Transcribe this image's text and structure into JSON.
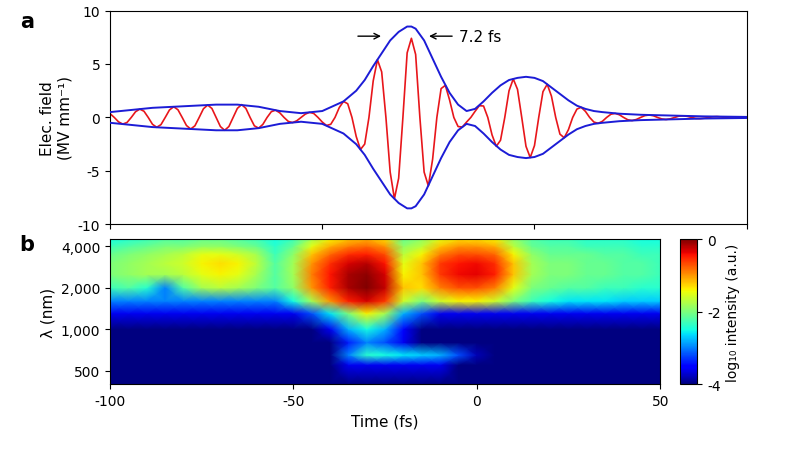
{
  "chart_data": [
    {
      "type": "line",
      "title": "a",
      "y_label": "Elec. field\n(MV mm⁻¹)",
      "tick_labels": "y",
      "xlim": [
        -100,
        50
      ],
      "xticks": [
        -100,
        -50,
        0,
        50
      ],
      "ylim": [
        -10,
        10
      ],
      "yticks": [
        -10,
        -5,
        0,
        5,
        10
      ],
      "x": [
        -100,
        -99,
        -98,
        -97,
        -96,
        -95,
        -94,
        -93,
        -92,
        -91,
        -90,
        -89,
        -88,
        -87,
        -86,
        -85,
        -84,
        -83,
        -82,
        -81,
        -80,
        -79,
        -78,
        -77,
        -76,
        -75,
        -74,
        -73,
        -72,
        -71,
        -70,
        -69,
        -68,
        -67,
        -66,
        -65,
        -64,
        -63,
        -62,
        -61,
        -60,
        -59,
        -58,
        -57,
        -56,
        -55,
        -54,
        -53,
        -52,
        -51,
        -50,
        -49,
        -48,
        -47,
        -46,
        -45,
        -44,
        -43,
        -42,
        -41,
        -40,
        -39,
        -38,
        -37,
        -36,
        -35,
        -34,
        -33,
        -32,
        -31,
        -30,
        -29,
        -28,
        -27,
        -26,
        -25,
        -24,
        -23,
        -22,
        -21,
        -20,
        -19,
        -18,
        -17,
        -16,
        -15,
        -14,
        -13,
        -12,
        -11,
        -10,
        -9,
        -8,
        -7,
        -6,
        -5,
        -4,
        -3,
        -2,
        -1,
        0,
        1,
        2,
        3,
        4,
        5,
        6,
        7,
        8,
        9,
        10,
        11,
        12,
        13,
        14,
        15,
        16,
        17,
        18,
        19,
        20,
        21,
        22,
        23,
        24,
        25,
        26,
        27,
        28,
        29,
        30,
        31,
        32,
        33,
        34,
        35,
        36,
        37,
        38,
        39,
        40,
        41,
        42,
        43,
        44,
        45,
        46,
        47,
        48,
        49,
        50
      ],
      "series": [
        {
          "color": "#e8161b",
          "values": [
            0.36,
            0,
            -0.41,
            -0.62,
            -0.47,
            0,
            0.53,
            0.78,
            0.58,
            0,
            -0.64,
            -0.92,
            -0.67,
            0,
            0.7,
            1.0,
            0.72,
            0,
            -0.75,
            -1.08,
            -0.78,
            0,
            0.81,
            1.16,
            0.84,
            0,
            -0.85,
            -1.2,
            -0.85,
            0,
            0.85,
            1.2,
            0.85,
            0,
            -0.78,
            -1.0,
            -0.65,
            0,
            0.54,
            0.68,
            0.43,
            0,
            -0.37,
            -0.48,
            -0.31,
            0,
            0.31,
            0.48,
            0.37,
            0,
            -0.43,
            -0.75,
            -0.64,
            0,
            0.92,
            1.5,
            1.28,
            0,
            -1.78,
            -3.0,
            -2.49,
            0,
            3.41,
            5.4,
            4.26,
            0,
            -5.11,
            -7.6,
            -5.68,
            0,
            6.04,
            7.4,
            5.89,
            0,
            -5.11,
            -6.4,
            -3.91,
            0,
            2.7,
            3.0,
            1.63,
            0,
            -0.85,
            -0.9,
            -0.43,
            0,
            0.57,
            1.1,
            1.07,
            0,
            -1.63,
            -2.7,
            -2.13,
            0,
            2.49,
            3.6,
            2.63,
            0,
            -2.7,
            -3.75,
            -2.63,
            0,
            2.41,
            3.1,
            1.99,
            0,
            -1.56,
            -1.9,
            -1.14,
            0,
            0.78,
            0.95,
            0.57,
            0,
            -0.43,
            -0.55,
            -0.36,
            0,
            0.3,
            0.38,
            0.25,
            0,
            -0.22,
            -0.29,
            -0.19,
            0,
            0.17,
            0.23,
            0.16,
            0,
            -0.14,
            -0.19,
            -0.13,
            0,
            0.12,
            0.15,
            0.1,
            0,
            -0.09,
            -0.11,
            -0.07,
            0,
            0.06,
            0.08,
            0.05,
            0,
            -0.05,
            -0.06,
            -0.04,
            0,
            0.04
          ]
        },
        {
          "color": "#1c1cd6",
          "x": [
            -100,
            -95,
            -90,
            -85,
            -80,
            -75,
            -70,
            -65,
            -60,
            -55,
            -50,
            -45,
            -42,
            -40,
            -38,
            -36,
            -34,
            -32,
            -30,
            -29,
            -28,
            -26,
            -24,
            -22,
            -20,
            -18,
            -16,
            -14,
            -12,
            -10,
            -8,
            -6,
            -4,
            -2,
            0,
            2,
            4,
            6,
            8,
            10,
            12,
            14,
            16,
            20,
            25,
            30,
            40,
            50
          ],
          "values": [
            0.5,
            0.7,
            0.9,
            1.0,
            1.1,
            1.2,
            1.2,
            1.0,
            0.6,
            0.4,
            0.6,
            1.5,
            2.5,
            3.5,
            4.8,
            6.0,
            7.2,
            8.0,
            8.5,
            8.5,
            8.3,
            7.2,
            5.5,
            3.8,
            2.3,
            1.2,
            0.6,
            0.8,
            1.5,
            2.3,
            3.0,
            3.5,
            3.7,
            3.8,
            3.7,
            3.4,
            2.8,
            2.2,
            1.6,
            1.1,
            0.8,
            0.6,
            0.5,
            0.35,
            0.25,
            0.2,
            0.1,
            0.05
          ]
        },
        {
          "color": "#1c1cd6",
          "x": [
            -100,
            -95,
            -90,
            -85,
            -80,
            -75,
            -70,
            -65,
            -60,
            -55,
            -50,
            -45,
            -42,
            -40,
            -38,
            -36,
            -34,
            -32,
            -30,
            -29,
            -28,
            -26,
            -24,
            -22,
            -20,
            -18,
            -16,
            -14,
            -12,
            -10,
            -8,
            -6,
            -4,
            -2,
            0,
            2,
            4,
            6,
            8,
            10,
            12,
            14,
            16,
            20,
            25,
            30,
            40,
            50
          ],
          "values": [
            -0.5,
            -0.7,
            -0.9,
            -1.0,
            -1.1,
            -1.2,
            -1.2,
            -1.0,
            -0.6,
            -0.4,
            -0.6,
            -1.5,
            -2.5,
            -3.5,
            -4.8,
            -6.0,
            -7.2,
            -8.0,
            -8.5,
            -8.5,
            -8.3,
            -7.2,
            -5.5,
            -3.8,
            -2.3,
            -1.2,
            -0.6,
            -0.8,
            -1.5,
            -2.3,
            -3.0,
            -3.5,
            -3.7,
            -3.8,
            -3.7,
            -3.4,
            -2.8,
            -2.2,
            -1.6,
            -1.1,
            -0.8,
            -0.6,
            -0.5,
            -0.35,
            -0.25,
            -0.2,
            -0.1,
            -0.05
          ]
        }
      ],
      "annotations": [
        {
          "text": "7.2 fs",
          "x": [
            -35.5,
            -25.5
          ],
          "y": 7.6
        }
      ]
    },
    {
      "type": "heatmap",
      "title": "b",
      "x_label": "Time (fs)",
      "y_label": "λ (nm)",
      "log": "y",
      "xlim": [
        -100,
        50
      ],
      "xticks": [
        -100,
        -50,
        0,
        50
      ],
      "ylim": [
        400,
        4500
      ],
      "yticks": [
        500,
        {
          "value": 1000,
          "label": "1,000"
        },
        {
          "value": 2000,
          "label": "2,000"
        },
        {
          "value": 4000,
          "label": "4,000"
        }
      ],
      "x": [
        -100,
        -95,
        -90,
        -85,
        -80,
        -75,
        -70,
        -65,
        -60,
        -55,
        -50,
        -45,
        -40,
        -35,
        -30,
        -25,
        -20,
        -15,
        -10,
        -5,
        0,
        5,
        10,
        15,
        20,
        25,
        30,
        35,
        40,
        45,
        50
      ],
      "y": [
        400,
        550,
        650,
        800,
        1000,
        1300,
        1600,
        2000,
        2500,
        3000,
        3500,
        4000,
        4500
      ],
      "cells": [
        [
          -4,
          -4,
          -4,
          -4,
          -4,
          -4,
          -4,
          -4,
          -4,
          -4,
          -4,
          -4,
          -4,
          -4,
          -4,
          -4,
          -4,
          -4,
          -4,
          -4,
          -4,
          -4,
          -4,
          -4,
          -4,
          -4,
          -4,
          -4,
          -4,
          -4,
          -4
        ],
        [
          -4,
          -4,
          -4,
          -4,
          -4,
          -4,
          -4,
          -4,
          -4,
          -4,
          -4,
          -4,
          -4,
          -3.6,
          -3.6,
          -3.6,
          -3.6,
          -3.6,
          -3.6,
          -4,
          -4,
          -4,
          -4,
          -4,
          -4,
          -4,
          -4,
          -4,
          -4,
          -4,
          -4
        ],
        [
          -4,
          -4,
          -4,
          -4,
          -4,
          -4,
          -4,
          -4,
          -4,
          -4,
          -4,
          -4,
          -4,
          -3.0,
          -2.4,
          -2.5,
          -2.6,
          -2.7,
          -2.8,
          -3.2,
          -3.8,
          -4,
          -4,
          -4,
          -4,
          -4,
          -4,
          -4,
          -4,
          -4,
          -4
        ],
        [
          -4,
          -4,
          -4,
          -4,
          -4,
          -4,
          -4,
          -4,
          -4,
          -4,
          -4,
          -4,
          -4,
          -3.4,
          -3.0,
          -3.2,
          -3.6,
          -4,
          -4,
          -4,
          -4,
          -4,
          -4,
          -4,
          -4,
          -4,
          -4,
          -4,
          -4,
          -4,
          -4
        ],
        [
          -4,
          -4,
          -4,
          -4,
          -4,
          -4,
          -4,
          -4,
          -4,
          -4,
          -4,
          -4,
          -3.6,
          -2.8,
          -2.5,
          -2.8,
          -3.5,
          -4,
          -4,
          -4,
          -4,
          -4,
          -4,
          -4,
          -4,
          -4,
          -4,
          -4,
          -4,
          -4,
          -4
        ],
        [
          -3.6,
          -3.6,
          -3.6,
          -3.6,
          -3.6,
          -3.6,
          -3.6,
          -3.6,
          -3.6,
          -3.6,
          -3.6,
          -3.2,
          -2.6,
          -2.0,
          -1.4,
          -1.8,
          -2.8,
          -3.2,
          -3.6,
          -3.6,
          -3.6,
          -3.6,
          -3.6,
          -3.6,
          -3.6,
          -3.6,
          -3.6,
          -3.6,
          -3.6,
          -3.6,
          -3.6
        ],
        [
          -3.0,
          -3.0,
          -3.0,
          -3.0,
          -3.0,
          -3.0,
          -3.0,
          -3.0,
          -3.0,
          -3.0,
          -2.5,
          -1.8,
          -1.0,
          -0.5,
          -0.3,
          -0.6,
          -1.6,
          -2.0,
          -1.6,
          -1.4,
          -1.4,
          -1.6,
          -2.0,
          -2.3,
          -2.5,
          -2.6,
          -2.6,
          -2.6,
          -2.7,
          -2.7,
          -2.7
        ],
        [
          -2.3,
          -2.2,
          -2.4,
          -3.0,
          -2.2,
          -1.8,
          -1.7,
          -1.8,
          -2.0,
          -2.2,
          -1.9,
          -1.0,
          -0.5,
          -0.15,
          0,
          -0.25,
          -1.2,
          -1.3,
          -0.9,
          -0.7,
          -0.7,
          -0.9,
          -1.5,
          -2.0,
          -2.1,
          -2.2,
          -2.2,
          -2.3,
          -2.3,
          -2.4,
          -2.4
        ],
        [
          -2.0,
          -1.9,
          -1.8,
          -1.8,
          -1.7,
          -1.5,
          -1.4,
          -1.5,
          -1.8,
          -2.2,
          -1.8,
          -0.9,
          -0.45,
          -0.15,
          -0.05,
          -0.3,
          -1.4,
          -1.2,
          -0.6,
          -0.4,
          -0.35,
          -0.5,
          -1.2,
          -1.8,
          -2.0,
          -2.0,
          -2.1,
          -2.1,
          -2.2,
          -2.2,
          -2.3
        ],
        [
          -2.0,
          -1.9,
          -1.8,
          -1.7,
          -1.6,
          -1.4,
          -1.3,
          -1.4,
          -1.7,
          -2.2,
          -1.8,
          -1.0,
          -0.55,
          -0.3,
          -0.2,
          -0.45,
          -1.5,
          -1.2,
          -0.6,
          -0.45,
          -0.4,
          -0.55,
          -1.2,
          -1.8,
          -2.0,
          -2.0,
          -2.1,
          -2.1,
          -2.2,
          -2.2,
          -2.3
        ],
        [
          -2.1,
          -2.0,
          -1.9,
          -1.8,
          -1.7,
          -1.5,
          -1.5,
          -1.6,
          -1.8,
          -2.3,
          -1.9,
          -1.2,
          -0.8,
          -0.55,
          -0.5,
          -0.7,
          -1.7,
          -1.4,
          -0.9,
          -0.7,
          -0.7,
          -0.8,
          -1.4,
          -1.9,
          -2.1,
          -2.1,
          -2.1,
          -2.2,
          -2.2,
          -2.3,
          -2.3
        ],
        [
          -2.3,
          -2.2,
          -2.1,
          -2.0,
          -2.0,
          -1.9,
          -1.9,
          -2.0,
          -2.1,
          -2.4,
          -2.1,
          -1.5,
          -1.1,
          -0.9,
          -0.8,
          -1.0,
          -1.9,
          -1.7,
          -1.2,
          -1.0,
          -1.0,
          -1.1,
          -1.7,
          -2.1,
          -2.2,
          -2.2,
          -2.3,
          -2.3,
          -2.3,
          -2.4,
          -2.4
        ],
        [
          -2.5,
          -2.4,
          -2.3,
          -2.2,
          -2.2,
          -2.1,
          -2.1,
          -2.2,
          -2.3,
          -2.5,
          -2.3,
          -1.8,
          -1.4,
          -1.2,
          -1.1,
          -1.3,
          -2.1,
          -1.9,
          -1.5,
          -1.3,
          -1.3,
          -1.4,
          -1.9,
          -2.2,
          -2.3,
          -2.3,
          -2.4,
          -2.4,
          -2.4,
          -2.5,
          -2.5
        ]
      ],
      "colorbar": {
        "label": "log₁₀ intensity (a.u.)",
        "range": [
          -4,
          0
        ],
        "ticks": [
          0,
          -2,
          -4
        ]
      }
    }
  ]
}
